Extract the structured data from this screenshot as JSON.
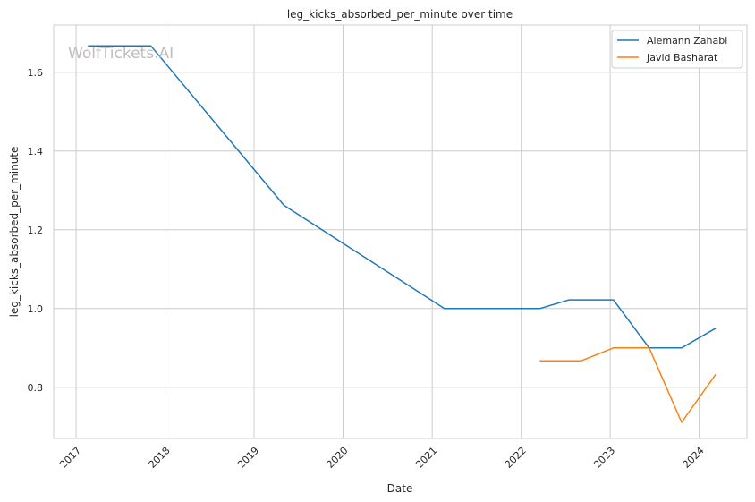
{
  "chart_data": {
    "type": "line",
    "title": "leg_kicks_absorbed_per_minute over time",
    "xlabel": "Date",
    "ylabel": "leg_kicks_absorbed_per_minute",
    "watermark": "WolfTickets.AI",
    "x_ticks": [
      "2017",
      "2018",
      "2019",
      "2020",
      "2021",
      "2022",
      "2023",
      "2024"
    ],
    "y_ticks": [
      "0.8",
      "1.0",
      "1.2",
      "1.4",
      "1.6"
    ],
    "xlim": [
      "2016-10-01",
      "2024-07-15"
    ],
    "ylim": [
      0.67,
      1.72
    ],
    "grid": true,
    "legend_position": "top-right",
    "series": [
      {
        "name": "Aiemann Zahabi",
        "color": "#1f77b4",
        "points": [
          {
            "x": "2017-02-18",
            "y": 1.667
          },
          {
            "x": "2017-11-04",
            "y": 1.667
          },
          {
            "x": "2019-05-04",
            "y": 1.262
          },
          {
            "x": "2021-02-20",
            "y": 1.0
          },
          {
            "x": "2022-03-18",
            "y": 1.0
          },
          {
            "x": "2022-07-16",
            "y": 1.022
          },
          {
            "x": "2023-01-14",
            "y": 1.022
          },
          {
            "x": "2023-06-10",
            "y": 0.9
          },
          {
            "x": "2023-10-21",
            "y": 0.9
          },
          {
            "x": "2024-03-09",
            "y": 0.95
          }
        ]
      },
      {
        "name": "Javid Basharat",
        "color": "#ff7f0e",
        "points": [
          {
            "x": "2022-03-18",
            "y": 0.867
          },
          {
            "x": "2022-09-03",
            "y": 0.867
          },
          {
            "x": "2023-01-14",
            "y": 0.9
          },
          {
            "x": "2023-06-10",
            "y": 0.9
          },
          {
            "x": "2023-10-21",
            "y": 0.711
          },
          {
            "x": "2024-03-09",
            "y": 0.833
          }
        ]
      }
    ]
  }
}
